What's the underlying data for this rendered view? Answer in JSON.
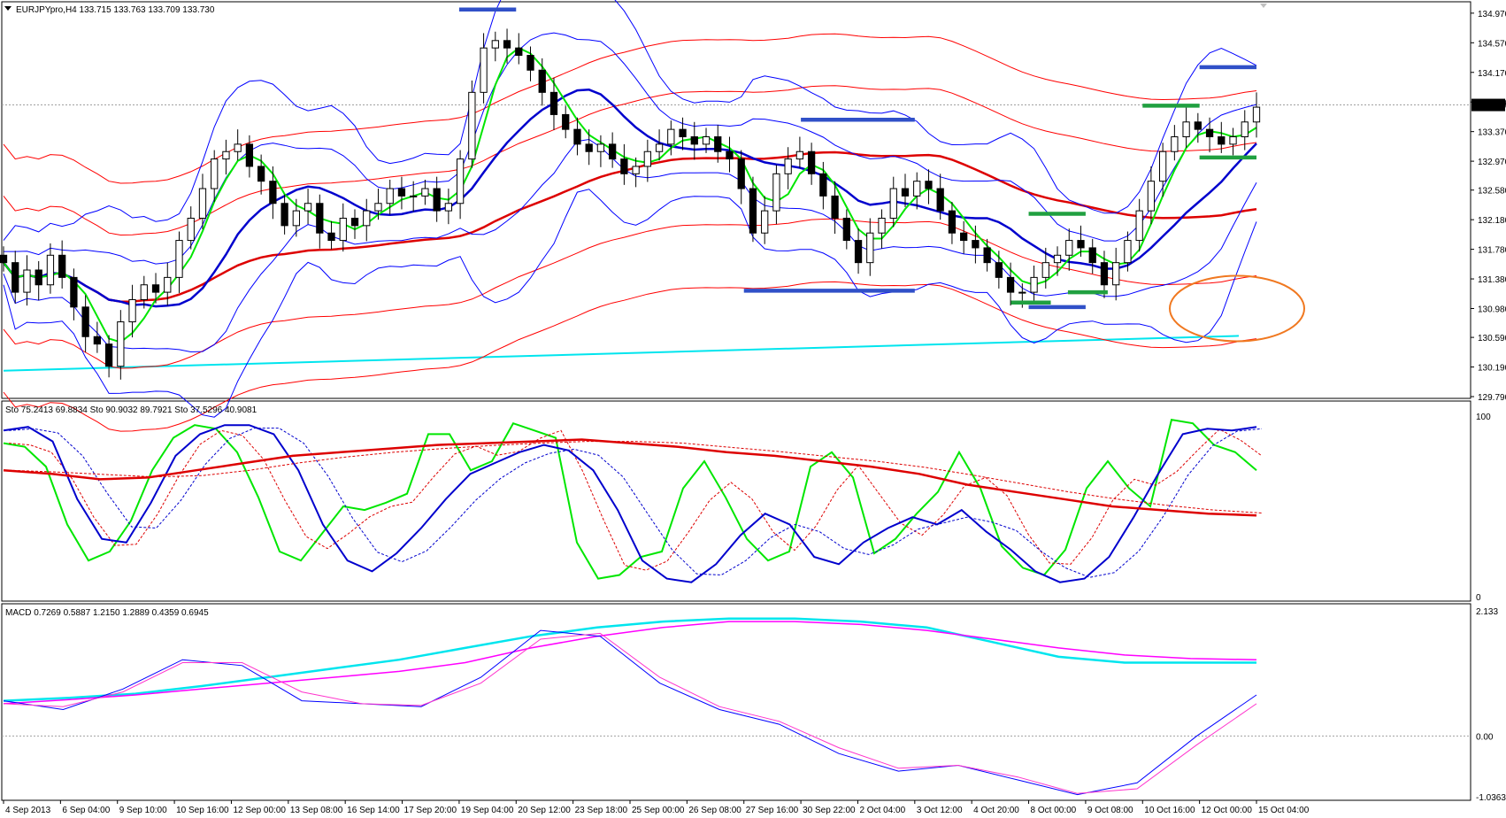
{
  "chart_data": [
    {
      "type": "candlestick",
      "header": "EURJPYpro,H4  133.715 133.763 133.709 133.730",
      "symbol": "EURJPYpro",
      "timeframe": "H4",
      "ohlc_last": [
        133.715,
        133.763,
        133.709,
        133.73
      ],
      "price_label": "133.730",
      "price": 133.73,
      "ylim": [
        129.79,
        135.1
      ],
      "y_ticks": [
        "134.970",
        "134.570",
        "134.170",
        "133.770",
        "133.370",
        "132.970",
        "132.580",
        "132.180",
        "131.780",
        "131.380",
        "130.980",
        "130.590",
        "130.190",
        "129.790"
      ],
      "x_ticks": [
        "4 Sep 2013",
        "6 Sep 04:00",
        "9 Sep 10:00",
        "10 Sep 16:00",
        "12 Sep 00:00",
        "13 Sep 08:00",
        "16 Sep 14:00",
        "17 Sep 20:00",
        "19 Sep 04:00",
        "20 Sep 12:00",
        "23 Sep 18:00",
        "25 Sep 00:00",
        "26 Sep 08:00",
        "27 Sep 16:00",
        "30 Sep 22:00",
        "2 Oct 04:00",
        "3 Oct 12:00",
        "4 Oct 20:00",
        "8 Oct 00:00",
        "9 Oct 08:00",
        "10 Oct 16:00",
        "12 Oct 00:00",
        "15 Oct 04:00"
      ],
      "close_series": [
        131.6,
        131.2,
        131.5,
        131.3,
        131.7,
        131.4,
        131.0,
        130.6,
        130.5,
        130.2,
        130.8,
        131.1,
        131.3,
        131.2,
        131.4,
        131.9,
        132.2,
        132.6,
        133.0,
        133.1,
        133.2,
        132.9,
        132.7,
        132.4,
        132.1,
        132.3,
        132.4,
        132.0,
        131.9,
        132.2,
        132.1,
        132.3,
        132.4,
        132.6,
        132.5,
        132.5,
        132.6,
        132.3,
        132.4,
        133.0,
        133.9,
        134.5,
        134.6,
        134.5,
        134.4,
        134.2,
        133.9,
        133.6,
        133.4,
        133.2,
        133.1,
        133.2,
        133.0,
        132.8,
        132.9,
        133.1,
        133.2,
        133.4,
        133.3,
        133.2,
        133.3,
        133.1,
        133.0,
        132.6,
        132.0,
        132.3,
        132.8,
        133.0,
        133.1,
        132.8,
        132.5,
        132.2,
        131.9,
        131.6,
        132.0,
        132.2,
        132.6,
        132.5,
        132.7,
        132.6,
        132.3,
        132.0,
        131.9,
        131.8,
        131.6,
        131.4,
        131.2,
        131.2,
        131.4,
        131.6,
        131.7,
        131.9,
        131.8,
        131.6,
        131.3,
        131.6,
        131.9,
        132.3,
        132.7,
        133.1,
        133.3,
        133.5,
        133.4,
        133.3,
        133.2,
        133.3,
        133.5,
        133.7
      ],
      "series_colors": {
        "bollinger_blue": "#0000ff",
        "ma_blue_thick": "#0000cd",
        "envelope_red": "#ff0000",
        "ma_red_thick": "#dd0000",
        "ma_green": "#00e600",
        "trendline": "#00e5ee",
        "resistance_lines": "#3050c8",
        "support_lines": "#20a040",
        "highlight_circle": "#f07820"
      },
      "annotations": [
        {
          "type": "level",
          "price": 135.02,
          "from": "19 Sep 04:00",
          "to": "20 Sep 12:00",
          "color": "#3050c8"
        },
        {
          "type": "level",
          "price": 134.24,
          "from": "12 Oct 00:00",
          "to": "15 Oct 04:00",
          "color": "#3050c8"
        },
        {
          "type": "level",
          "price": 133.53,
          "from": "30 Sep 22:00",
          "to": "3 Oct 12:00",
          "color": "#3050c8"
        },
        {
          "type": "level",
          "price": 131.22,
          "from": "27 Sep 16:00",
          "to": "3 Oct 12:00",
          "color": "#3050c8"
        },
        {
          "type": "level",
          "price": 131.0,
          "from": "8 Oct 00:00",
          "to": "9 Oct 08:00",
          "color": "#3050c8"
        },
        {
          "type": "level",
          "price": 133.72,
          "from": "10 Oct 16:00",
          "to": "12 Oct 00:00",
          "color": "#20a040"
        },
        {
          "type": "level",
          "price": 133.02,
          "from": "12 Oct 00:00",
          "to": "15 Oct 04:00",
          "color": "#20a040"
        },
        {
          "type": "level",
          "price": 132.26,
          "from": "8 Oct 00:00",
          "to": "9 Oct 08:00",
          "color": "#20a040"
        },
        {
          "type": "level",
          "price": 131.2,
          "from": "9 Oct 08:00",
          "to": "9 Oct 08:00",
          "color": "#20a040"
        },
        {
          "type": "level",
          "price": 131.06,
          "from": "8 Oct 00:00",
          "to": "8 Oct 00:00",
          "color": "#20a040"
        }
      ]
    },
    {
      "type": "line",
      "header": "Sto 75.2413 69.8834  Sto 90.9032 89.7921  Sto 37.5296 40.9081",
      "ylim": [
        0,
        100
      ],
      "y_ticks": [
        "100",
        "0"
      ],
      "series": [
        {
          "color": "#00e600",
          "values": [
            85,
            83,
            72,
            40,
            20,
            25,
            42,
            70,
            88,
            95,
            93,
            80,
            55,
            25,
            20,
            35,
            50,
            48,
            52,
            57,
            90,
            90,
            70,
            75,
            96,
            92,
            88,
            30,
            10,
            12,
            22,
            25,
            60,
            75,
            55,
            32,
            20,
            25,
            72,
            80,
            66,
            24,
            32,
            46,
            58,
            80,
            60,
            28,
            16,
            12,
            26,
            60,
            75,
            60,
            50,
            98,
            96,
            84,
            80,
            70
          ]
        },
        {
          "color": "#0000cd",
          "values": [
            92,
            94,
            86,
            54,
            32,
            30,
            52,
            78,
            90,
            95,
            95,
            90,
            70,
            40,
            20,
            14,
            24,
            38,
            54,
            68,
            74,
            80,
            84,
            81,
            70,
            48,
            20,
            10,
            8,
            18,
            34,
            46,
            40,
            22,
            18,
            30,
            38,
            44,
            40,
            48,
            36,
            26,
            14,
            8,
            10,
            22,
            44,
            68,
            90,
            93,
            92,
            94
          ]
        },
        {
          "color": "#dd0000",
          "values": [
            70,
            68,
            65,
            66,
            70,
            74,
            78,
            80,
            82,
            84,
            85,
            86,
            87,
            85,
            83,
            80,
            78,
            75,
            72,
            68,
            62,
            58,
            54,
            50,
            48,
            46,
            45
          ]
        }
      ]
    },
    {
      "type": "line",
      "header": "MACD 0.7269 0.5887 1.2150 1.2889 0.4359 0.6945",
      "ylim": [
        -1.0363,
        2.133
      ],
      "y_ticks": [
        "2.133",
        "0.00",
        "-1.0363"
      ],
      "series": [
        {
          "color": "#00e5ee",
          "values": [
            0.6,
            0.65,
            0.72,
            0.85,
            1.0,
            1.15,
            1.3,
            1.5,
            1.7,
            1.85,
            1.95,
            2.0,
            2.0,
            1.95,
            1.85,
            1.6,
            1.35,
            1.25,
            1.25,
            1.25
          ]
        },
        {
          "color": "#ff00ff",
          "values": [
            0.55,
            0.62,
            0.7,
            0.8,
            0.9,
            1.0,
            1.1,
            1.25,
            1.5,
            1.7,
            1.85,
            1.95,
            1.95,
            1.9,
            1.8,
            1.65,
            1.5,
            1.38,
            1.32,
            1.3
          ]
        },
        {
          "color": "#0000ff",
          "values": [
            0.6,
            0.45,
            0.8,
            1.3,
            1.2,
            0.6,
            0.55,
            0.5,
            1.0,
            1.8,
            1.7,
            0.9,
            0.45,
            0.2,
            -0.3,
            -0.6,
            -0.5,
            -0.75,
            -1.0,
            -0.8,
            0.0,
            0.7
          ]
        },
        {
          "color": "#ff33cc",
          "values": [
            0.55,
            0.5,
            0.75,
            1.25,
            1.25,
            0.75,
            0.55,
            0.52,
            0.9,
            1.65,
            1.75,
            1.0,
            0.5,
            0.25,
            -0.2,
            -0.55,
            -0.5,
            -0.7,
            -0.98,
            -0.9,
            -0.15,
            0.55
          ]
        }
      ]
    }
  ]
}
